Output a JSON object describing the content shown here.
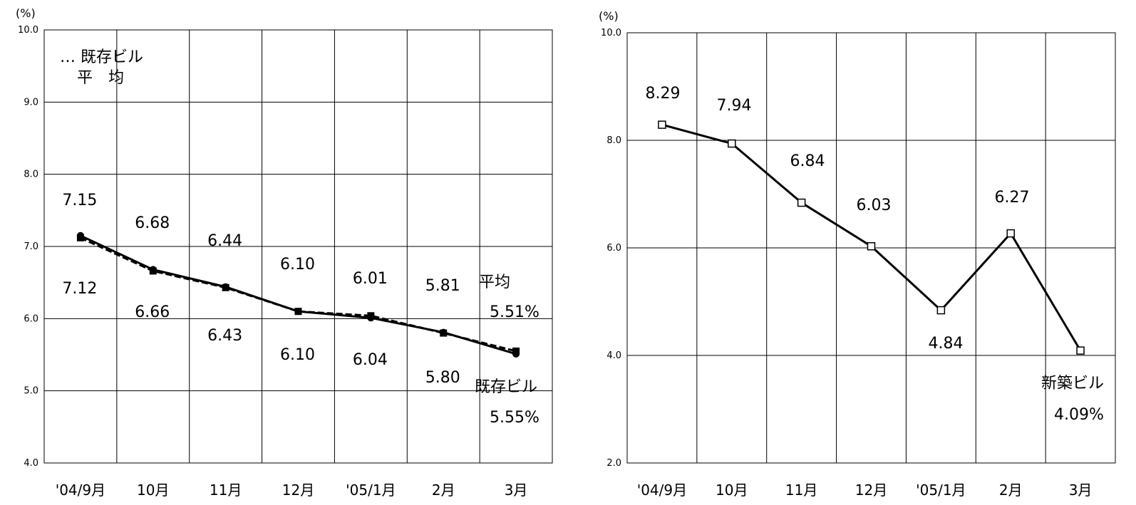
{
  "chart_data": [
    {
      "type": "line",
      "y_unit_label": "(%)",
      "ylim": [
        4.0,
        10.0
      ],
      "yticks": [
        "4.0",
        "5.0",
        "6.0",
        "7.0",
        "8.0",
        "9.0",
        "10.0"
      ],
      "categories": [
        "'04/9月",
        "10月",
        "11月",
        "12月",
        "'05/1月",
        "2月",
        "3月"
      ],
      "grid": true,
      "legend": {
        "position": "top-left",
        "line1": "… 既存ビル",
        "line2": "平　均"
      },
      "series": [
        {
          "name": "平均",
          "end_label": "5.51%",
          "values": [
            7.15,
            6.68,
            6.44,
            6.1,
            6.01,
            5.81,
            5.51
          ],
          "labels": [
            "7.15",
            "6.68",
            "6.44",
            "6.10",
            "6.01",
            "5.81",
            "5.51%"
          ]
        },
        {
          "name": "既存ビル",
          "end_label": "5.55%",
          "values": [
            7.12,
            6.66,
            6.43,
            6.1,
            6.04,
            5.8,
            5.55
          ],
          "labels": [
            "7.12",
            "6.66",
            "6.43",
            "6.10",
            "6.04",
            "5.80",
            "5.55%"
          ]
        }
      ]
    },
    {
      "type": "line",
      "y_unit_label": "(%)",
      "ylim": [
        2.0,
        10.0
      ],
      "yticks": [
        "2.0",
        "4.0",
        "6.0",
        "8.0",
        "10.0"
      ],
      "categories": [
        "'04/9月",
        "10月",
        "11月",
        "12月",
        "'05/1月",
        "2月",
        "3月"
      ],
      "grid": true,
      "series": [
        {
          "name": "新築ビル",
          "values": [
            8.29,
            7.94,
            6.84,
            6.03,
            4.84,
            6.27,
            4.09
          ],
          "labels": [
            "8.29",
            "7.94",
            "6.84",
            "6.03",
            "4.84",
            "6.27",
            "4.09%"
          ]
        }
      ]
    }
  ]
}
